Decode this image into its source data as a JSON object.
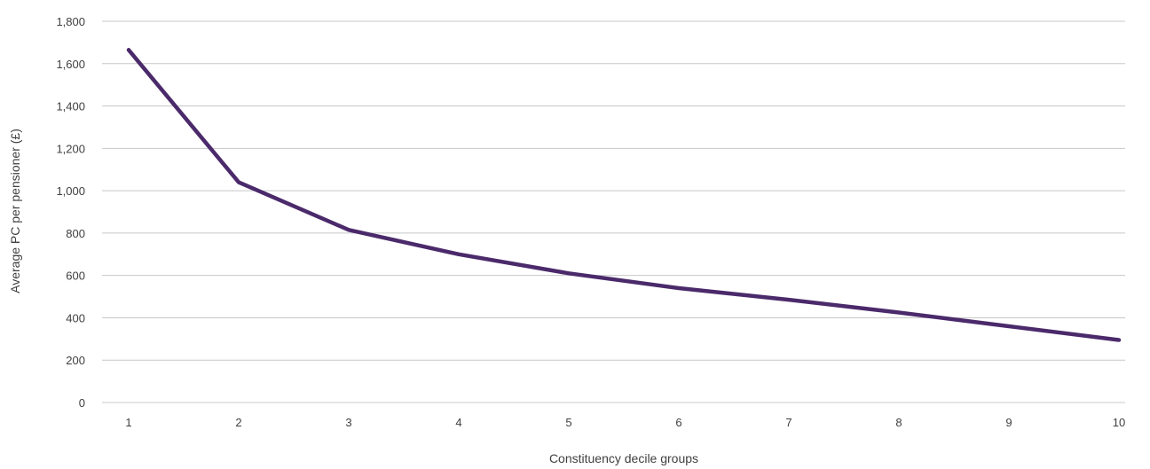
{
  "chart_data": {
    "type": "line",
    "title": "",
    "xlabel": "Constituency decile groups",
    "ylabel": "Average PC per pensioner (£)",
    "categories": [
      "1",
      "2",
      "3",
      "4",
      "5",
      "6",
      "7",
      "8",
      "9",
      "10"
    ],
    "series": [
      {
        "values": [
          1665,
          1040,
          815,
          700,
          610,
          540,
          485,
          425,
          360,
          295
        ]
      }
    ],
    "yticks": [
      "0",
      "200",
      "400",
      "600",
      "800",
      "1,000",
      "1,200",
      "1,400",
      "1,600",
      "1,800"
    ],
    "ylim": [
      0,
      1800
    ],
    "grid": true,
    "legend": "none",
    "colors": {
      "line": "#4b2a6b",
      "grid": "#c8c8c8",
      "text": "#404040"
    }
  }
}
